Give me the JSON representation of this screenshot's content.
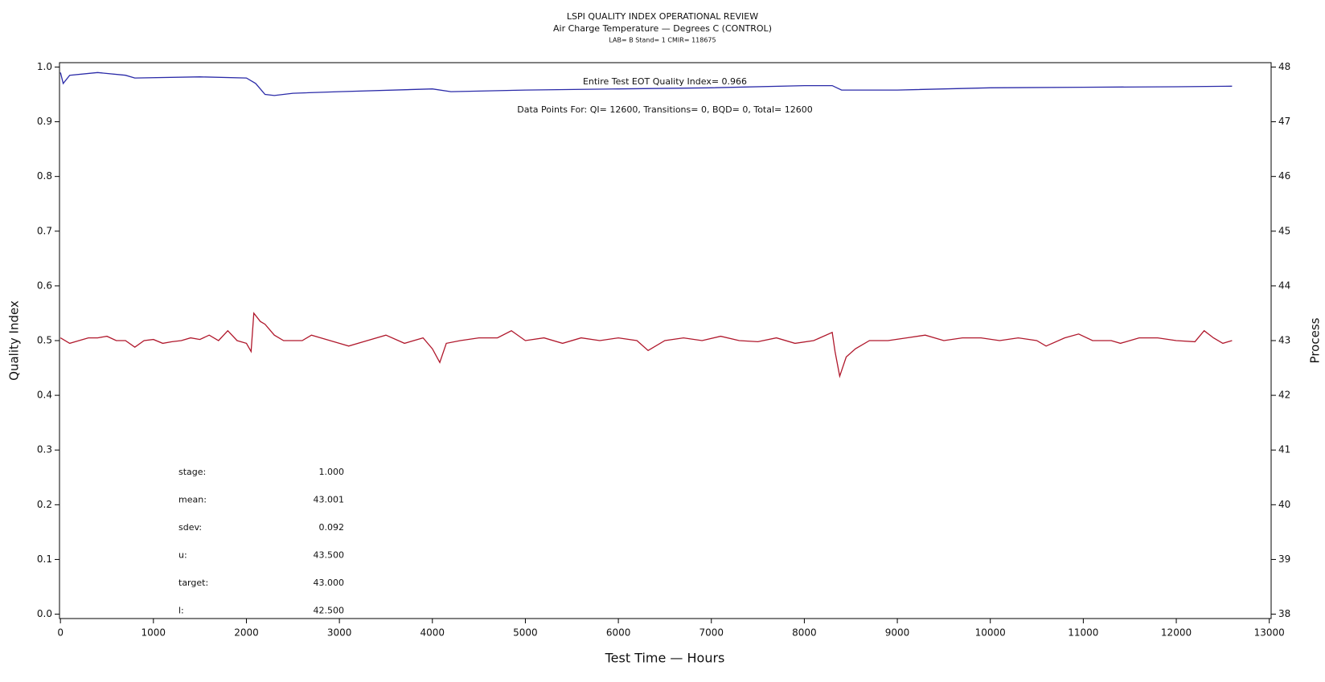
{
  "chart_data": {
    "type": "line",
    "title": "LSPI QUALITY INDEX OPERATIONAL REVIEW",
    "subtitle": "Air Charge Temperature — Degrees C (CONTROL)",
    "subtitle2": "LAB= B Stand= 1 CMIR= 118675",
    "xlabel": "Test Time — Hours",
    "ylabel": "Quality Index",
    "y2label": "Process",
    "annotations": [
      "Entire Test EOT Quality Index=   0.966",
      "Data Points For: QI= 12600, Transitions=     0, BQD=     0, Total= 12600"
    ],
    "stats": [
      {
        "label": "stage:",
        "value": "1.000"
      },
      {
        "label": "mean:",
        "value": "43.001"
      },
      {
        "label": "sdev:",
        "value": "0.092"
      },
      {
        "label": "u:",
        "value": "43.500"
      },
      {
        "label": "target:",
        "value": "43.000"
      },
      {
        "label": "l:",
        "value": "42.500"
      }
    ],
    "xlim": [
      -10,
      13020
    ],
    "xticks": [
      0,
      1000,
      2000,
      3000,
      4000,
      5000,
      6000,
      7000,
      8000,
      9000,
      10000,
      11000,
      12000,
      13000
    ],
    "ylim": [
      -0.008,
      1.008
    ],
    "yticks": [
      {
        "value": 0,
        "label": "0.0"
      },
      0.1,
      0.2,
      0.3,
      0.4,
      0.5,
      0.6,
      0.7,
      0.8,
      0.9,
      {
        "value": 1,
        "label": "1.0"
      }
    ],
    "y2lim": [
      37.92,
      48.08
    ],
    "y2ticks": [
      38,
      39,
      40,
      41,
      42,
      43,
      44,
      45,
      46,
      47,
      48
    ],
    "series": [
      {
        "color": "#2a2aa8",
        "x": [
          0,
          30,
          100,
          400,
          700,
          800,
          1500,
          2000,
          2100,
          2200,
          2300,
          2500,
          3000,
          4000,
          4200,
          5000,
          6000,
          7000,
          8000,
          8300,
          8400,
          9000,
          10000,
          11000,
          12000,
          12600
        ],
        "values": [
          0.99,
          0.97,
          0.985,
          0.99,
          0.985,
          0.98,
          0.982,
          0.98,
          0.97,
          0.95,
          0.948,
          0.952,
          0.955,
          0.96,
          0.955,
          0.958,
          0.96,
          0.962,
          0.966,
          0.966,
          0.958,
          0.958,
          0.962,
          0.963,
          0.964,
          0.965
        ]
      },
      {
        "color": "#b0182c",
        "axis": "y2",
        "x": [
          0,
          100,
          200,
          300,
          400,
          500,
          600,
          700,
          800,
          900,
          1000,
          1100,
          1200,
          1300,
          1400,
          1500,
          1600,
          1700,
          1800,
          1900,
          2000,
          2050,
          2080,
          2150,
          2200,
          2300,
          2400,
          2600,
          2700,
          2800,
          3000,
          3100,
          3300,
          3500,
          3700,
          3900,
          4000,
          4080,
          4150,
          4300,
          4500,
          4700,
          4850,
          5000,
          5200,
          5400,
          5600,
          5800,
          6000,
          6200,
          6320,
          6500,
          6700,
          6900,
          7100,
          7300,
          7500,
          7700,
          7900,
          8100,
          8300,
          8330,
          8380,
          8450,
          8550,
          8700,
          8900,
          9100,
          9300,
          9500,
          9700,
          9900,
          10100,
          10300,
          10500,
          10600,
          10800,
          10950,
          11100,
          11300,
          11400,
          11600,
          11800,
          12000,
          12200,
          12300,
          12400,
          12500,
          12600
        ],
        "values": [
          43.05,
          42.95,
          43.0,
          43.05,
          43.05,
          43.08,
          43.0,
          43.0,
          42.88,
          43.0,
          43.02,
          42.95,
          42.98,
          43.0,
          43.05,
          43.02,
          43.1,
          43.0,
          43.18,
          43.0,
          42.95,
          42.8,
          43.5,
          43.35,
          43.3,
          43.1,
          43.0,
          43.0,
          43.1,
          43.05,
          42.95,
          42.9,
          43.0,
          43.1,
          42.95,
          43.05,
          42.85,
          42.6,
          42.95,
          43.0,
          43.05,
          43.05,
          43.18,
          43.0,
          43.05,
          42.95,
          43.05,
          43.0,
          43.05,
          43.0,
          42.82,
          43.0,
          43.05,
          43.0,
          43.08,
          43.0,
          42.98,
          43.05,
          42.95,
          43.0,
          43.15,
          42.8,
          42.35,
          42.7,
          42.85,
          43.0,
          43.0,
          43.05,
          43.1,
          43.0,
          43.05,
          43.05,
          43.0,
          43.05,
          43.0,
          42.9,
          43.05,
          43.12,
          43.0,
          43.0,
          42.95,
          43.05,
          43.05,
          43.0,
          42.98,
          43.18,
          43.05,
          42.95,
          43.0
        ]
      }
    ]
  }
}
